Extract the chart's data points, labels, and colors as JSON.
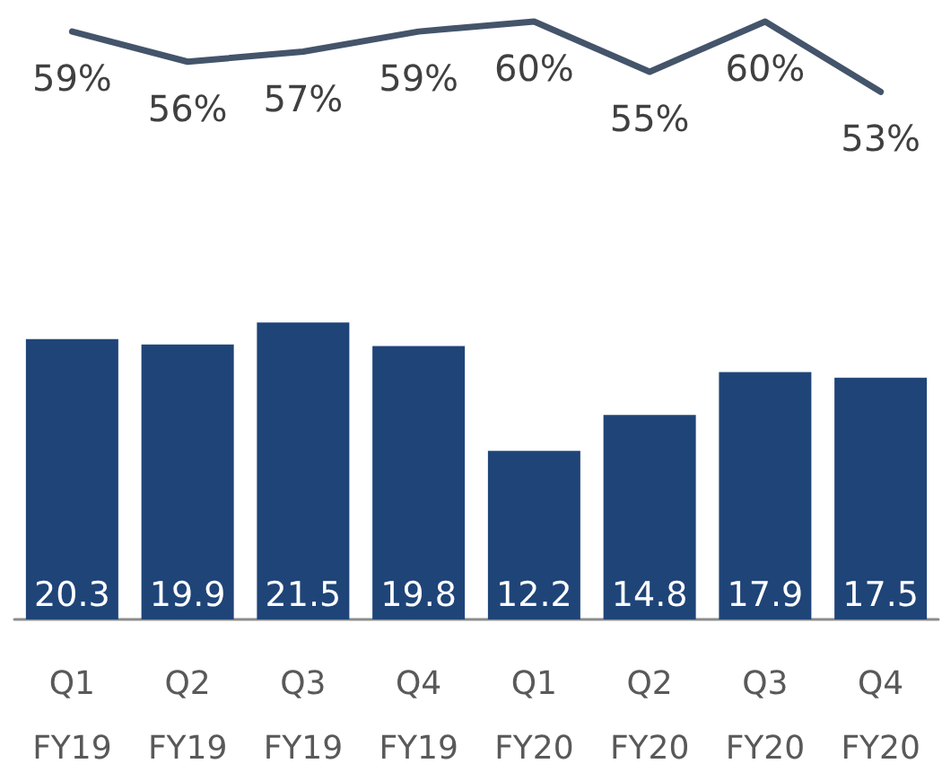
{
  "chart_data": [
    {
      "type": "line",
      "categories": [
        null,
        null,
        null,
        null,
        null,
        null,
        null,
        null
      ],
      "color": "#44546a",
      "values": [
        59,
        56,
        57,
        59,
        60,
        55,
        60,
        53
      ],
      "value_labels": [
        "59%",
        "56%",
        "57%",
        "59%",
        "60%",
        "55%",
        "60%",
        "53%"
      ],
      "marker": "none",
      "tick_labels": false
    },
    {
      "type": "bar",
      "categories": [
        "Q1\nFY19",
        "Q2\nFY19",
        "Q3\nFY19",
        "Q4\nFY19",
        "Q1\nFY20",
        "Q2\nFY20",
        "Q3\nFY20",
        "Q4\nFY20"
      ],
      "color": "#1f4478",
      "values": [
        20.3,
        19.9,
        21.5,
        19.8,
        12.2,
        14.8,
        17.9,
        17.5
      ],
      "data_labels": true,
      "tick_labels": "x"
    }
  ]
}
